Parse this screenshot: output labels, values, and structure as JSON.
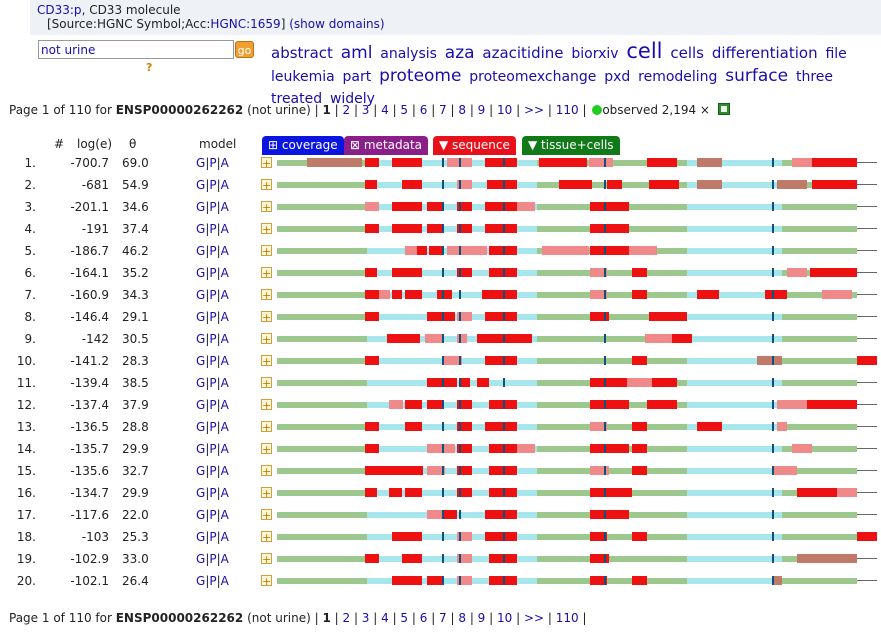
{
  "header": {
    "gene_link": "CD33:p",
    "gene_desc": ", CD33 molecule",
    "source_prefix": "[Source:HGNC Symbol;Acc:",
    "source_link": "HGNC:1659",
    "source_suffix": "]",
    "show_domains": "(show domains)"
  },
  "search": {
    "value": "not urine",
    "go_label": "go",
    "help": "?"
  },
  "tags": [
    {
      "text": "abstract",
      "size": 15
    },
    {
      "text": "aml",
      "size": 17
    },
    {
      "text": "analysis",
      "size": 14
    },
    {
      "text": "aza",
      "size": 17
    },
    {
      "text": "azacitidine",
      "size": 15
    },
    {
      "text": "biorxiv",
      "size": 14
    },
    {
      "text": "cell",
      "size": 21
    },
    {
      "text": "cells",
      "size": 15
    },
    {
      "text": "differentiation",
      "size": 15
    },
    {
      "text": "file",
      "size": 14
    },
    {
      "text": "leukemia",
      "size": 14
    },
    {
      "text": "part",
      "size": 14
    },
    {
      "text": "proteome",
      "size": 17
    },
    {
      "text": "proteomexchange",
      "size": 14
    },
    {
      "text": "pxd",
      "size": 14
    },
    {
      "text": "remodeling",
      "size": 14
    },
    {
      "text": "surface",
      "size": 17
    },
    {
      "text": "three",
      "size": 14
    },
    {
      "text": "treated",
      "size": 14
    },
    {
      "text": "widely",
      "size": 14
    }
  ],
  "pager": {
    "prefix": "Page 1 of 110 for ",
    "accession": "ENSP00000262262",
    "filter": " (not urine) | ",
    "current": "1",
    "pages": [
      "2",
      "3",
      "4",
      "5",
      "6",
      "7",
      "8",
      "9",
      "10"
    ],
    "next": ">>",
    "last": "110",
    "observed": "observed 2,194 ×"
  },
  "columns": {
    "num": "#",
    "loge": "log(e)",
    "theta": "θ",
    "model": "model"
  },
  "tabs": [
    {
      "label": "⊞ coverage",
      "color": "#0a16e0"
    },
    {
      "label": "⊠ metadata",
      "color": "#8a1f8a"
    },
    {
      "label": "▼ sequence",
      "color": "#e8101a"
    },
    {
      "label": "▼ tissue+cells",
      "color": "#107a18"
    }
  ],
  "model_links": {
    "g": "G",
    "p": "P",
    "a": "A",
    "sep": "|"
  },
  "expand_icon": "+",
  "colors": {
    "red": "#ee1111",
    "pink": "#f08a8a",
    "green": "#9dc88d",
    "cyan": "#a8e6ee",
    "mauve": "#c07a6a",
    "tick": "#10507a"
  },
  "rows": [
    {
      "num": "1.",
      "loge": "-700.7",
      "theta": "69.0"
    },
    {
      "num": "2.",
      "loge": "-681",
      "theta": "54.9"
    },
    {
      "num": "3.",
      "loge": "-201.1",
      "theta": "34.6"
    },
    {
      "num": "4.",
      "loge": "-191",
      "theta": "37.4"
    },
    {
      "num": "5.",
      "loge": "-186.7",
      "theta": "46.2"
    },
    {
      "num": "6.",
      "loge": "-164.1",
      "theta": "35.2"
    },
    {
      "num": "7.",
      "loge": "-160.9",
      "theta": "34.3"
    },
    {
      "num": "8.",
      "loge": "-146.4",
      "theta": "29.1"
    },
    {
      "num": "9.",
      "loge": "-142",
      "theta": "30.5"
    },
    {
      "num": "10.",
      "loge": "-141.2",
      "theta": "28.3"
    },
    {
      "num": "11.",
      "loge": "-139.4",
      "theta": "38.5"
    },
    {
      "num": "12.",
      "loge": "-137.4",
      "theta": "37.9"
    },
    {
      "num": "13.",
      "loge": "-136.5",
      "theta": "28.8"
    },
    {
      "num": "14.",
      "loge": "-135.7",
      "theta": "29.9"
    },
    {
      "num": "15.",
      "loge": "-135.6",
      "theta": "32.7"
    },
    {
      "num": "16.",
      "loge": "-134.7",
      "theta": "29.9"
    },
    {
      "num": "17.",
      "loge": "-117.6",
      "theta": "22.0"
    },
    {
      "num": "18.",
      "loge": "-103",
      "theta": "25.3"
    },
    {
      "num": "19.",
      "loge": "-102.9",
      "theta": "33.0"
    },
    {
      "num": "20.",
      "loge": "-102.1",
      "theta": "26.4"
    }
  ]
}
